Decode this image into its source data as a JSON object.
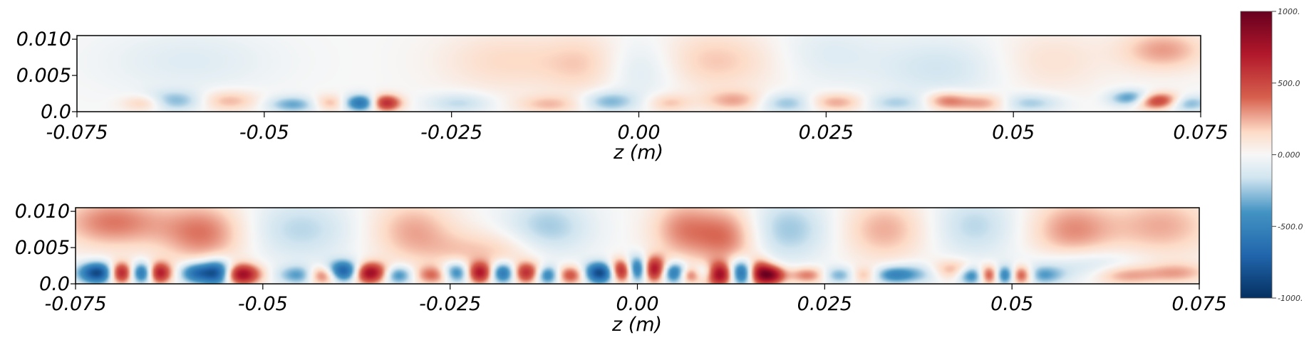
{
  "chart_data": [
    {
      "type": "heatmap",
      "title": "",
      "xlabel": "z (m)",
      "ylabel": "",
      "xlim": [
        -0.075,
        0.075
      ],
      "ylim": [
        0.0,
        0.0105
      ],
      "x_ticks": [
        {
          "value": -0.075,
          "label": "-0.075"
        },
        {
          "value": -0.05,
          "label": "-0.05"
        },
        {
          "value": -0.025,
          "label": "-0.025"
        },
        {
          "value": 0.0,
          "label": "0.00"
        },
        {
          "value": 0.025,
          "label": "0.025"
        },
        {
          "value": 0.05,
          "label": "0.05"
        },
        {
          "value": 0.075,
          "label": "0.075"
        }
      ],
      "y_ticks": [
        {
          "value": 0.0,
          "label": "0.0"
        },
        {
          "value": 0.005,
          "label": "0.005"
        },
        {
          "value": 0.01,
          "label": "0.010"
        }
      ],
      "blobs": [
        {
          "z": -0.037,
          "y": 0.0012,
          "v": -700,
          "sz": 0.0018,
          "sy": 0.0008
        },
        {
          "z": -0.034,
          "y": 0.0012,
          "v": 750,
          "sz": 0.0015,
          "sy": 0.0008
        },
        {
          "z": -0.046,
          "y": 0.001,
          "v": -350,
          "sz": 0.0025,
          "sy": 0.0008
        },
        {
          "z": -0.062,
          "y": 0.0015,
          "v": -300,
          "sz": 0.003,
          "sy": 0.001
        },
        {
          "z": -0.066,
          "y": 0.0012,
          "v": 250,
          "sz": 0.002,
          "sy": 0.0008
        },
        {
          "z": -0.055,
          "y": 0.0015,
          "v": 250,
          "sz": 0.003,
          "sy": 0.001
        },
        {
          "z": -0.041,
          "y": 0.0012,
          "v": 300,
          "sz": 0.002,
          "sy": 0.0008
        },
        {
          "z": -0.024,
          "y": 0.0012,
          "v": -200,
          "sz": 0.003,
          "sy": 0.001
        },
        {
          "z": -0.012,
          "y": 0.001,
          "v": 200,
          "sz": 0.003,
          "sy": 0.0009
        },
        {
          "z": -0.004,
          "y": 0.0014,
          "v": -300,
          "sz": 0.0025,
          "sy": 0.001
        },
        {
          "z": 0.004,
          "y": 0.0012,
          "v": 200,
          "sz": 0.002,
          "sy": 0.0009
        },
        {
          "z": 0.013,
          "y": 0.0015,
          "v": 250,
          "sz": 0.003,
          "sy": 0.001
        },
        {
          "z": 0.02,
          "y": 0.0012,
          "v": -300,
          "sz": 0.003,
          "sy": 0.001
        },
        {
          "z": 0.026,
          "y": 0.0013,
          "v": 300,
          "sz": 0.003,
          "sy": 0.0009
        },
        {
          "z": 0.034,
          "y": 0.0012,
          "v": -200,
          "sz": 0.003,
          "sy": 0.0009
        },
        {
          "z": 0.041,
          "y": 0.0015,
          "v": 350,
          "sz": 0.002,
          "sy": 0.0009
        },
        {
          "z": 0.046,
          "y": 0.0012,
          "v": 300,
          "sz": 0.0025,
          "sy": 0.0009
        },
        {
          "z": 0.052,
          "y": 0.0012,
          "v": -250,
          "sz": 0.003,
          "sy": 0.0009
        },
        {
          "z": 0.066,
          "y": 0.0018,
          "v": -600,
          "sz": 0.002,
          "sy": 0.0008
        },
        {
          "z": 0.069,
          "y": 0.0015,
          "v": 700,
          "sz": 0.0025,
          "sy": 0.0008
        },
        {
          "z": 0.073,
          "y": 0.0012,
          "v": -400,
          "sz": 0.002,
          "sy": 0.0008
        },
        {
          "z": 0.07,
          "y": 0.0085,
          "v": 280,
          "sz": 0.004,
          "sy": 0.002
        },
        {
          "z": 0.01,
          "y": 0.007,
          "v": 200,
          "sz": 0.006,
          "sy": 0.003
        },
        {
          "z": -0.007,
          "y": 0.0065,
          "v": 180,
          "sz": 0.004,
          "sy": 0.003
        },
        {
          "z": -0.018,
          "y": 0.007,
          "v": 150,
          "sz": 0.006,
          "sy": 0.003
        },
        {
          "z": 0.0,
          "y": 0.006,
          "v": -160,
          "sz": 0.004,
          "sy": 0.003
        },
        {
          "z": 0.04,
          "y": 0.006,
          "v": -150,
          "sz": 0.006,
          "sy": 0.003
        },
        {
          "z": 0.055,
          "y": 0.007,
          "v": 120,
          "sz": 0.005,
          "sy": 0.003
        },
        {
          "z": -0.06,
          "y": 0.007,
          "v": -100,
          "sz": 0.008,
          "sy": 0.003
        },
        {
          "z": 0.025,
          "y": 0.008,
          "v": -100,
          "sz": 0.005,
          "sy": 0.003
        }
      ]
    },
    {
      "type": "heatmap",
      "title": "",
      "xlabel": "z (m)",
      "ylabel": "",
      "xlim": [
        -0.075,
        0.075
      ],
      "ylim": [
        0.0,
        0.0105
      ],
      "x_ticks": [
        {
          "value": -0.075,
          "label": "-0.075"
        },
        {
          "value": -0.05,
          "label": "-0.05"
        },
        {
          "value": -0.025,
          "label": "-0.025"
        },
        {
          "value": 0.0,
          "label": "0.00"
        },
        {
          "value": 0.025,
          "label": "0.025"
        },
        {
          "value": 0.05,
          "label": "0.05"
        },
        {
          "value": 0.075,
          "label": "0.075"
        }
      ],
      "y_ticks": [
        {
          "value": 0.0,
          "label": "0.0"
        },
        {
          "value": 0.005,
          "label": "0.005"
        },
        {
          "value": 0.01,
          "label": "0.010"
        }
      ],
      "blobs": [
        {
          "z": -0.072,
          "y": 0.0015,
          "v": -900,
          "sz": 0.0018,
          "sy": 0.001
        },
        {
          "z": -0.069,
          "y": 0.0015,
          "v": 850,
          "sz": 0.0012,
          "sy": 0.001
        },
        {
          "z": -0.066,
          "y": 0.0015,
          "v": -750,
          "sz": 0.0012,
          "sy": 0.001
        },
        {
          "z": -0.064,
          "y": 0.0015,
          "v": 800,
          "sz": 0.0012,
          "sy": 0.001
        },
        {
          "z": -0.059,
          "y": 0.0015,
          "v": -600,
          "sz": 0.0015,
          "sy": 0.001
        },
        {
          "z": -0.056,
          "y": 0.0015,
          "v": -900,
          "sz": 0.0015,
          "sy": 0.0012
        },
        {
          "z": -0.053,
          "y": 0.0013,
          "v": 850,
          "sz": 0.0018,
          "sy": 0.001
        },
        {
          "z": -0.045,
          "y": 0.0012,
          "v": -400,
          "sz": 0.002,
          "sy": 0.0009
        },
        {
          "z": -0.042,
          "y": 0.0012,
          "v": 600,
          "sz": 0.0015,
          "sy": 0.0009
        },
        {
          "z": -0.039,
          "y": 0.0017,
          "v": -950,
          "sz": 0.0017,
          "sy": 0.001
        },
        {
          "z": -0.036,
          "y": 0.0015,
          "v": 950,
          "sz": 0.0018,
          "sy": 0.001
        },
        {
          "z": -0.032,
          "y": 0.0012,
          "v": -500,
          "sz": 0.0015,
          "sy": 0.0009
        },
        {
          "z": -0.027,
          "y": 0.0012,
          "v": 400,
          "sz": 0.002,
          "sy": 0.0009
        },
        {
          "z": -0.024,
          "y": 0.0015,
          "v": -700,
          "sz": 0.0015,
          "sy": 0.001
        },
        {
          "z": -0.021,
          "y": 0.0015,
          "v": 850,
          "sz": 0.0015,
          "sy": 0.001
        },
        {
          "z": -0.018,
          "y": 0.0015,
          "v": -800,
          "sz": 0.0015,
          "sy": 0.001
        },
        {
          "z": -0.015,
          "y": 0.0015,
          "v": 700,
          "sz": 0.0015,
          "sy": 0.001
        },
        {
          "z": -0.012,
          "y": 0.0012,
          "v": -600,
          "sz": 0.0012,
          "sy": 0.0009
        },
        {
          "z": -0.009,
          "y": 0.0012,
          "v": 500,
          "sz": 0.0015,
          "sy": 0.0009
        },
        {
          "z": -0.005,
          "y": 0.0015,
          "v": -900,
          "sz": 0.0015,
          "sy": 0.001
        },
        {
          "z": -0.002,
          "y": 0.0018,
          "v": 900,
          "sz": 0.0012,
          "sy": 0.0011
        },
        {
          "z": 0.0,
          "y": 0.002,
          "v": -950,
          "sz": 0.0012,
          "sy": 0.0012
        },
        {
          "z": 0.002,
          "y": 0.002,
          "v": 900,
          "sz": 0.0012,
          "sy": 0.0012
        },
        {
          "z": 0.005,
          "y": 0.0015,
          "v": -700,
          "sz": 0.0012,
          "sy": 0.001
        },
        {
          "z": 0.007,
          "y": 0.0012,
          "v": 500,
          "sz": 0.0012,
          "sy": 0.0008
        },
        {
          "z": 0.009,
          "y": 0.0015,
          "v": -500,
          "sz": 0.0012,
          "sy": 0.0009
        },
        {
          "z": 0.011,
          "y": 0.0013,
          "v": 950,
          "sz": 0.0015,
          "sy": 0.0011
        },
        {
          "z": 0.014,
          "y": 0.0015,
          "v": -950,
          "sz": 0.0015,
          "sy": 0.0012
        },
        {
          "z": 0.016,
          "y": 0.0015,
          "v": 900,
          "sz": 0.0012,
          "sy": 0.0012
        },
        {
          "z": 0.018,
          "y": 0.0012,
          "v": 700,
          "sz": 0.0012,
          "sy": 0.0009
        },
        {
          "z": 0.023,
          "y": 0.0012,
          "v": 400,
          "sz": 0.002,
          "sy": 0.0008
        },
        {
          "z": 0.027,
          "y": 0.0012,
          "v": -400,
          "sz": 0.002,
          "sy": 0.0008
        },
        {
          "z": 0.03,
          "y": 0.0012,
          "v": 350,
          "sz": 0.0015,
          "sy": 0.0008
        },
        {
          "z": 0.034,
          "y": 0.0012,
          "v": -400,
          "sz": 0.002,
          "sy": 0.0008
        },
        {
          "z": 0.038,
          "y": 0.0015,
          "v": -300,
          "sz": 0.003,
          "sy": 0.001
        },
        {
          "z": 0.042,
          "y": 0.0018,
          "v": 400,
          "sz": 0.0025,
          "sy": 0.001
        },
        {
          "z": 0.045,
          "y": 0.0012,
          "v": -700,
          "sz": 0.0015,
          "sy": 0.0009
        },
        {
          "z": 0.047,
          "y": 0.0012,
          "v": 850,
          "sz": 0.0012,
          "sy": 0.0009
        },
        {
          "z": 0.049,
          "y": 0.0012,
          "v": -800,
          "sz": 0.0012,
          "sy": 0.0009
        },
        {
          "z": 0.051,
          "y": 0.0012,
          "v": 700,
          "sz": 0.0012,
          "sy": 0.0009
        },
        {
          "z": 0.054,
          "y": 0.0012,
          "v": -350,
          "sz": 0.002,
          "sy": 0.0009
        },
        {
          "z": 0.06,
          "y": 0.0025,
          "v": -200,
          "sz": 0.005,
          "sy": 0.0015
        },
        {
          "z": 0.065,
          "y": 0.0012,
          "v": 300,
          "sz": 0.003,
          "sy": 0.001
        },
        {
          "z": 0.072,
          "y": 0.0015,
          "v": 250,
          "sz": 0.003,
          "sy": 0.001
        },
        {
          "z": -0.07,
          "y": 0.0085,
          "v": 350,
          "sz": 0.005,
          "sy": 0.0025
        },
        {
          "z": -0.058,
          "y": 0.007,
          "v": 350,
          "sz": 0.004,
          "sy": 0.003
        },
        {
          "z": -0.045,
          "y": 0.0075,
          "v": -200,
          "sz": 0.005,
          "sy": 0.003
        },
        {
          "z": -0.03,
          "y": 0.0075,
          "v": 250,
          "sz": 0.004,
          "sy": 0.003
        },
        {
          "z": -0.012,
          "y": 0.0075,
          "v": -250,
          "sz": 0.004,
          "sy": 0.003
        },
        {
          "z": 0.006,
          "y": 0.0075,
          "v": 300,
          "sz": 0.003,
          "sy": 0.003
        },
        {
          "z": 0.012,
          "y": 0.0065,
          "v": 350,
          "sz": 0.003,
          "sy": 0.003
        },
        {
          "z": 0.02,
          "y": 0.0075,
          "v": -250,
          "sz": 0.004,
          "sy": 0.003
        },
        {
          "z": 0.033,
          "y": 0.0075,
          "v": 250,
          "sz": 0.004,
          "sy": 0.003
        },
        {
          "z": 0.045,
          "y": 0.008,
          "v": -200,
          "sz": 0.004,
          "sy": 0.003
        },
        {
          "z": 0.058,
          "y": 0.0075,
          "v": 300,
          "sz": 0.004,
          "sy": 0.003
        },
        {
          "z": 0.07,
          "y": 0.008,
          "v": 250,
          "sz": 0.005,
          "sy": 0.003
        },
        {
          "z": -0.02,
          "y": 0.0045,
          "v": 200,
          "sz": 0.006,
          "sy": 0.002
        }
      ]
    }
  ],
  "colorbar": {
    "colormap": "blue-white-red",
    "range": [
      -1000,
      1000
    ],
    "ticks": [
      {
        "value": 1000,
        "label": "1000."
      },
      {
        "value": 500,
        "label": "500.0"
      },
      {
        "value": 0,
        "label": "0.000"
      },
      {
        "value": -500,
        "label": "-500.0"
      },
      {
        "value": -1000,
        "label": "-1000."
      }
    ],
    "colors": {
      "low": "#053061",
      "mid_low": "#4393c3",
      "mid": "#f7f7f7",
      "mid_high": "#d6604d",
      "high": "#67001f"
    }
  }
}
